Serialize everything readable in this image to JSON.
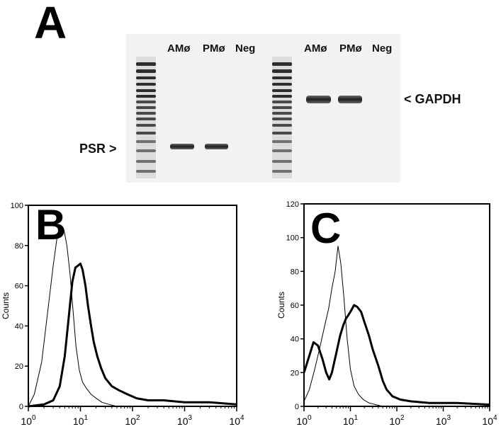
{
  "figure": {
    "panel_a": {
      "letter": "A",
      "gel_left_lanes": [
        "AMø",
        "PMø",
        "Neg"
      ],
      "gel_right_lanes": [
        "AMø",
        "PMø",
        "Neg"
      ],
      "psr_label": "PSR >",
      "gapdh_label": "< GAPDH"
    },
    "panel_b": {
      "letter": "B"
    },
    "panel_c": {
      "letter": "C"
    }
  },
  "chart_data": [
    {
      "type": "line",
      "panel": "B",
      "xscale": "log",
      "xlim": [
        1,
        10000
      ],
      "ylim": [
        0,
        100
      ],
      "yticks": [
        0,
        20,
        40,
        60,
        80,
        100
      ],
      "xticks": [
        1,
        10,
        100,
        1000,
        10000
      ],
      "xtick_labels": [
        [
          "10",
          "0"
        ],
        [
          "10",
          "1"
        ],
        [
          "10",
          "2"
        ],
        [
          "10",
          "3"
        ],
        [
          "10",
          "4"
        ]
      ],
      "ylabel": "Counts",
      "series": [
        {
          "style": "thin",
          "x": [
            1,
            1.3,
            1.8,
            2.3,
            3,
            3.6,
            4.2,
            4.8,
            5.5,
            6.3,
            7.2,
            8.2,
            9.5,
            11,
            13,
            16,
            20,
            26,
            35,
            50,
            100,
            1000,
            10000
          ],
          "y": [
            0,
            6,
            22,
            45,
            70,
            85,
            90,
            88,
            80,
            66,
            48,
            30,
            18,
            12,
            9,
            6,
            4,
            2,
            1,
            0,
            0,
            0,
            0
          ]
        },
        {
          "style": "thick",
          "x": [
            1,
            2,
            3,
            4,
            5,
            6,
            7,
            8,
            9,
            10,
            11,
            12.5,
            14,
            16,
            18,
            21,
            25,
            30,
            40,
            55,
            80,
            120,
            200,
            400,
            1000,
            3000,
            10000
          ],
          "y": [
            0,
            1,
            3,
            10,
            25,
            45,
            62,
            69,
            70,
            71,
            68,
            60,
            50,
            40,
            32,
            25,
            19,
            14,
            10,
            8,
            6,
            4,
            3,
            3,
            2,
            2,
            1
          ]
        }
      ]
    },
    {
      "type": "line",
      "panel": "C",
      "xscale": "log",
      "xlim": [
        1,
        10000
      ],
      "ylim": [
        0,
        120
      ],
      "yticks": [
        0,
        20,
        40,
        60,
        80,
        100,
        120
      ],
      "xticks": [
        1,
        10,
        100,
        1000,
        10000
      ],
      "xtick_labels": [
        [
          "10",
          "0"
        ],
        [
          "10",
          "1"
        ],
        [
          "10",
          "2"
        ],
        [
          "10",
          "3"
        ],
        [
          "10",
          "4"
        ]
      ],
      "ylabel": "Counts",
      "series": [
        {
          "style": "thin",
          "x": [
            1,
            1.3,
            1.7,
            2.2,
            2.8,
            3.4,
            4,
            4.7,
            5.4,
            6.2,
            7.2,
            8.5,
            10,
            12,
            15,
            19,
            25,
            35,
            50,
            80,
            150,
            1000,
            10000
          ],
          "y": [
            3,
            10,
            22,
            35,
            48,
            58,
            70,
            80,
            95,
            85,
            65,
            40,
            22,
            12,
            7,
            4,
            2,
            1,
            0,
            0,
            0,
            0,
            0
          ]
        },
        {
          "style": "thick",
          "x": [
            1,
            1.3,
            1.6,
            2,
            2.5,
            3,
            3.5,
            4,
            5,
            6,
            7,
            8,
            9,
            10,
            12,
            14,
            17,
            20,
            25,
            30,
            40,
            50,
            60,
            80,
            120,
            200,
            500,
            2000,
            10000
          ],
          "y": [
            20,
            30,
            38,
            36,
            28,
            20,
            16,
            20,
            32,
            42,
            48,
            52,
            54,
            56,
            60,
            59,
            56,
            50,
            42,
            34,
            24,
            15,
            10,
            6,
            4,
            3,
            2,
            2,
            1
          ]
        }
      ]
    }
  ]
}
